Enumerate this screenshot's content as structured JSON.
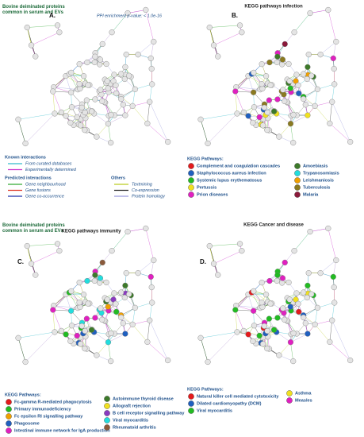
{
  "panels": [
    {
      "title": "Bovine deiminated proteins common in serum and EVs",
      "letter": "A.",
      "note": "PPI enrichment p-value: < 1.0e-16",
      "legend_groups": [
        {
          "heading": "Known interactions",
          "items": [
            {
              "label": "From curated databases",
              "color": "#33bbcc"
            },
            {
              "label": "Experimentally determined",
              "color": "#cc33cc"
            }
          ]
        },
        {
          "heading": "Predicted interactions",
          "items": [
            {
              "label": "Gene neighbourhood",
              "color": "#33aa33"
            },
            {
              "label": "Gene fusions",
              "color": "#dd3322"
            },
            {
              "label": "Gene co-occurrence",
              "color": "#2233aa"
            }
          ]
        },
        {
          "heading": "Others",
          "items": [
            {
              "label": "Textmining",
              "color": "#bbcc22"
            },
            {
              "label": "Co-expression",
              "color": "#222222"
            },
            {
              "label": "Protein homology",
              "color": "#9999dd"
            }
          ]
        }
      ]
    },
    {
      "subtitle": "KEGG pathways infection",
      "letter": "B.",
      "legend_heading": "KEGG Pathways:",
      "pathways": [
        {
          "label": "Complement and coagulation cascades",
          "color": "#e41a1c"
        },
        {
          "label": "Staphylococcus aureus infection",
          "color": "#1f5fbf"
        },
        {
          "label": "Systemic lupus erythematosus",
          "color": "#22bb22"
        },
        {
          "label": "Pertussis",
          "color": "#f0e020"
        },
        {
          "label": "Prion diseases",
          "color": "#e020c0"
        },
        {
          "label": "Amoebiasis",
          "color": "#3d7a2a"
        },
        {
          "label": "Trypanosomiasis",
          "color": "#22dddd"
        },
        {
          "label": "Leishmaniosis",
          "color": "#f0a000"
        },
        {
          "label": "Tuberculosis",
          "color": "#8a7a20"
        },
        {
          "label": "Malaria",
          "color": "#8a1a3a"
        }
      ]
    },
    {
      "title": "Bovine deiminated proteins common in serum and EVs",
      "subtitle": "KEGG pathways immunity",
      "letter": "C.",
      "legend_heading": "KEGG Pathways:",
      "pathways": [
        {
          "label": "Fc-gamma R-mediated phagocytosis",
          "color": "#e41a1c"
        },
        {
          "label": "Primary immunodeficiency",
          "color": "#22bb22"
        },
        {
          "label": "Fc epsilon RI signalling pathway",
          "color": "#f0a000"
        },
        {
          "label": "Phagosome",
          "color": "#1f5fbf"
        },
        {
          "label": "Intestinal immune network for IgA production",
          "color": "#e020c0"
        },
        {
          "label": "Autoimmune thyroid disease",
          "color": "#3d7a2a"
        },
        {
          "label": "Allograft rejection",
          "color": "#f0e020"
        },
        {
          "label": "B cell receptor signalling pathway",
          "color": "#8a3ac0"
        },
        {
          "label": "Viral myocarditis",
          "color": "#22dddd"
        },
        {
          "label": "Rheumatoid arthritis",
          "color": "#8a5a3a"
        }
      ]
    },
    {
      "subtitle": "KEGG Cancer and disease",
      "letter": "D.",
      "legend_heading": "KEGG Pathways:",
      "pathways": [
        {
          "label": "Natural killer cell mediated cytotoxicity",
          "color": "#e41a1c"
        },
        {
          "label": "Dilated cardiomyopathy (DCM)",
          "color": "#1f5fbf"
        },
        {
          "label": "Viral myocarditis",
          "color": "#22bb22"
        },
        {
          "label": "Asthma",
          "color": "#f0e020"
        },
        {
          "label": "Measles",
          "color": "#e020c0"
        }
      ]
    }
  ]
}
